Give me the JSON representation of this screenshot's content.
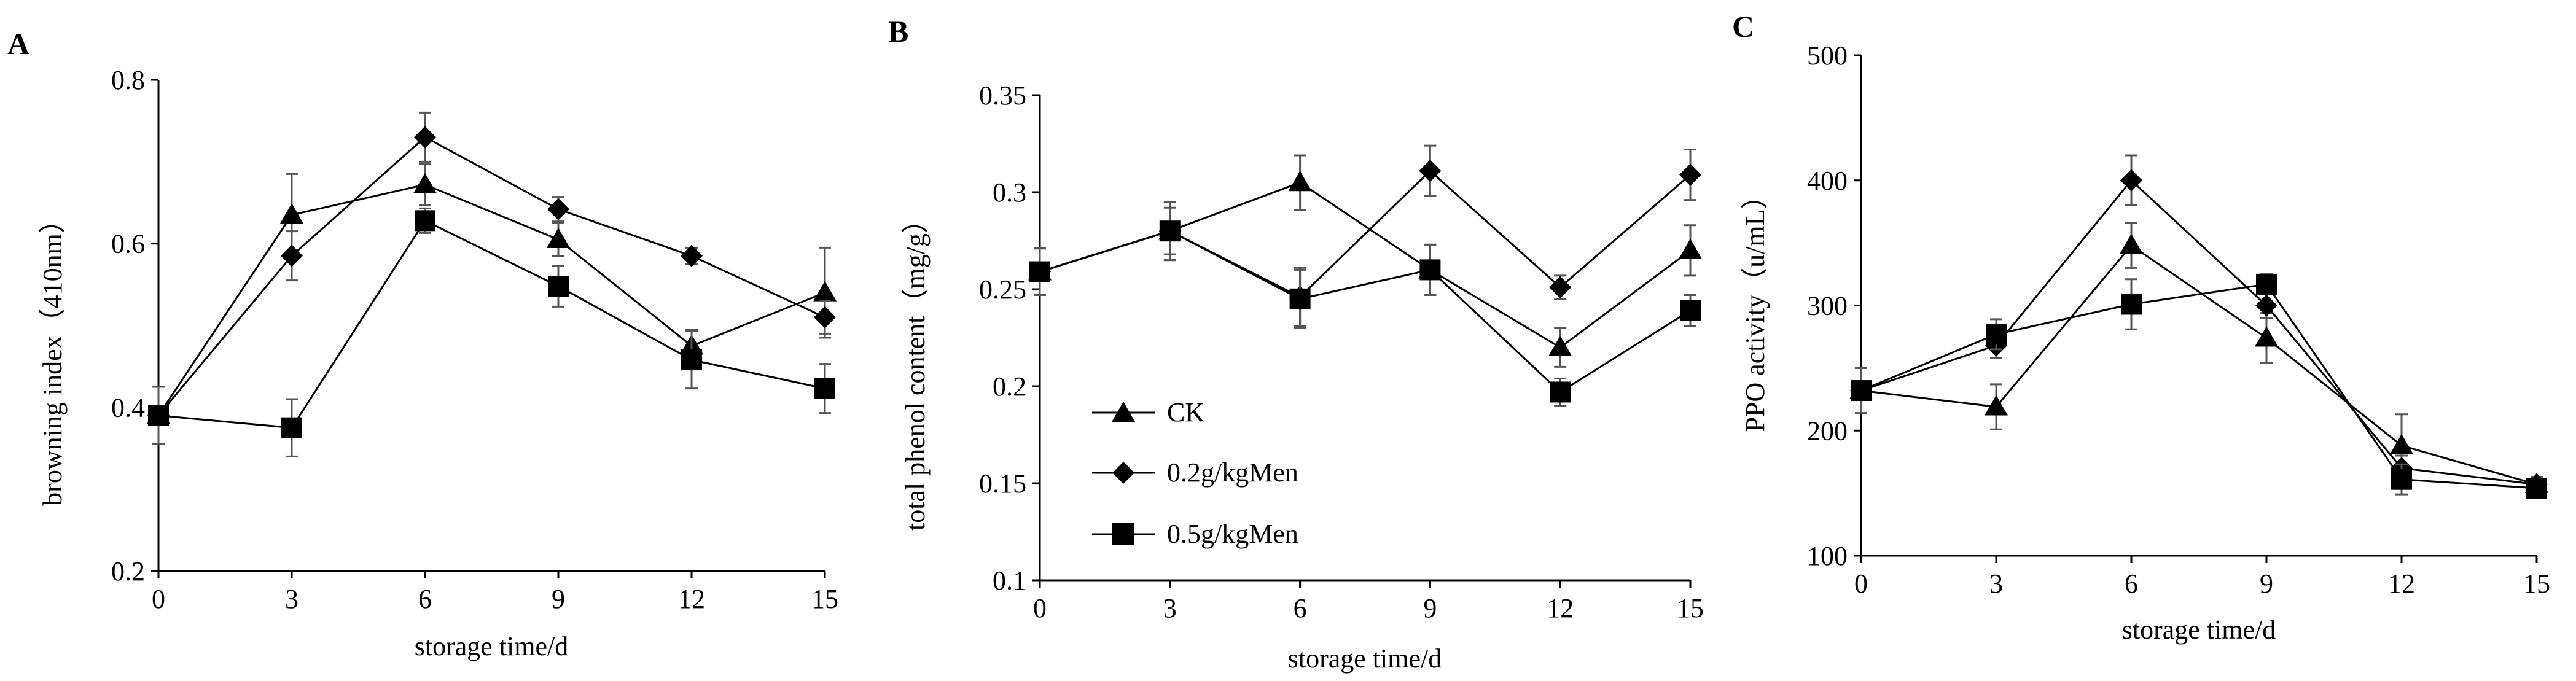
{
  "chart_data": [
    {
      "type": "line",
      "panel": "A",
      "xlabel": "storage time/d",
      "ylabel": "browning index（410nm）",
      "x": [
        0,
        3,
        6,
        9,
        12,
        15
      ],
      "xticks": [
        "0",
        "3",
        "6",
        "9",
        "12",
        "15"
      ],
      "yticks": [
        "0.2",
        "0.4",
        "0.6",
        "0.8"
      ],
      "ylim": [
        0.2,
        0.8
      ],
      "series": [
        {
          "name": "CK",
          "marker": "triangle",
          "values": [
            0.39,
            0.635,
            0.672,
            0.605,
            0.475,
            0.54
          ],
          "errors": [
            0.035,
            0.05,
            0.025,
            0.02,
            0.02,
            0.055
          ]
        },
        {
          "name": "0.2g/kgMen",
          "marker": "diamond",
          "values": [
            0.39,
            0.585,
            0.73,
            0.642,
            0.585,
            0.51
          ],
          "errors": [
            0.035,
            0.03,
            0.03,
            0.015,
            0.01,
            0.02
          ]
        },
        {
          "name": "0.5g/kgMen",
          "marker": "square",
          "values": [
            0.39,
            0.375,
            0.628,
            0.548,
            0.458,
            0.423
          ],
          "errors": [
            0.035,
            0.035,
            0.015,
            0.025,
            0.035,
            0.03
          ]
        }
      ]
    },
    {
      "type": "line",
      "panel": "B",
      "xlabel": "storage time/d",
      "ylabel": "total phenol content（mg/g）",
      "x": [
        0,
        3,
        6,
        9,
        12,
        15
      ],
      "xticks": [
        "0",
        "3",
        "6",
        "9",
        "12",
        "15"
      ],
      "yticks": [
        "0.1",
        "0.15",
        "0.2",
        "0.25",
        "0.3",
        "0.35"
      ],
      "ylim": [
        0.1,
        0.35
      ],
      "legend": [
        "CK",
        "0.2g/kgMen",
        "0.5g/kgMen"
      ],
      "series": [
        {
          "name": "CK",
          "marker": "triangle",
          "values": [
            0.259,
            0.28,
            0.305,
            0.26,
            0.22,
            0.27
          ],
          "errors": [
            0.012,
            0.015,
            0.014,
            0.013,
            0.01,
            0.013
          ]
        },
        {
          "name": "0.2g/kgMen",
          "marker": "diamond",
          "values": [
            0.259,
            0.28,
            0.246,
            0.311,
            0.251,
            0.309
          ],
          "errors": [
            0.012,
            0.012,
            0.015,
            0.013,
            0.006,
            0.013
          ]
        },
        {
          "name": "0.5g/kgMen",
          "marker": "square",
          "values": [
            0.259,
            0.28,
            0.245,
            0.26,
            0.197,
            0.239
          ],
          "errors": [
            0.012,
            0.015,
            0.015,
            0.013,
            0.007,
            0.008
          ]
        }
      ]
    },
    {
      "type": "line",
      "panel": "C",
      "xlabel": "storage time/d",
      "ylabel": "PPO activity（u/mL）",
      "x": [
        0,
        3,
        6,
        9,
        12,
        15
      ],
      "xticks": [
        "0",
        "3",
        "6",
        "9",
        "12",
        "15"
      ],
      "yticks": [
        "100",
        "200",
        "300",
        "400",
        "500"
      ],
      "ylim": [
        100,
        500
      ],
      "series": [
        {
          "name": "CK",
          "marker": "triangle",
          "values": [
            232,
            219,
            348,
            274,
            188,
            157
          ],
          "errors": [
            18,
            18,
            18,
            20,
            25,
            6
          ]
        },
        {
          "name": "0.2g/kgMen",
          "marker": "diamond",
          "values": [
            232,
            268,
            400,
            300,
            170,
            157
          ],
          "errors": [
            18,
            10,
            20,
            10,
            10,
            6
          ]
        },
        {
          "name": "0.5g/kgMen",
          "marker": "square",
          "values": [
            232,
            277,
            301,
            317,
            161,
            154
          ],
          "errors": [
            18,
            12,
            20,
            8,
            12,
            6
          ]
        }
      ]
    }
  ]
}
